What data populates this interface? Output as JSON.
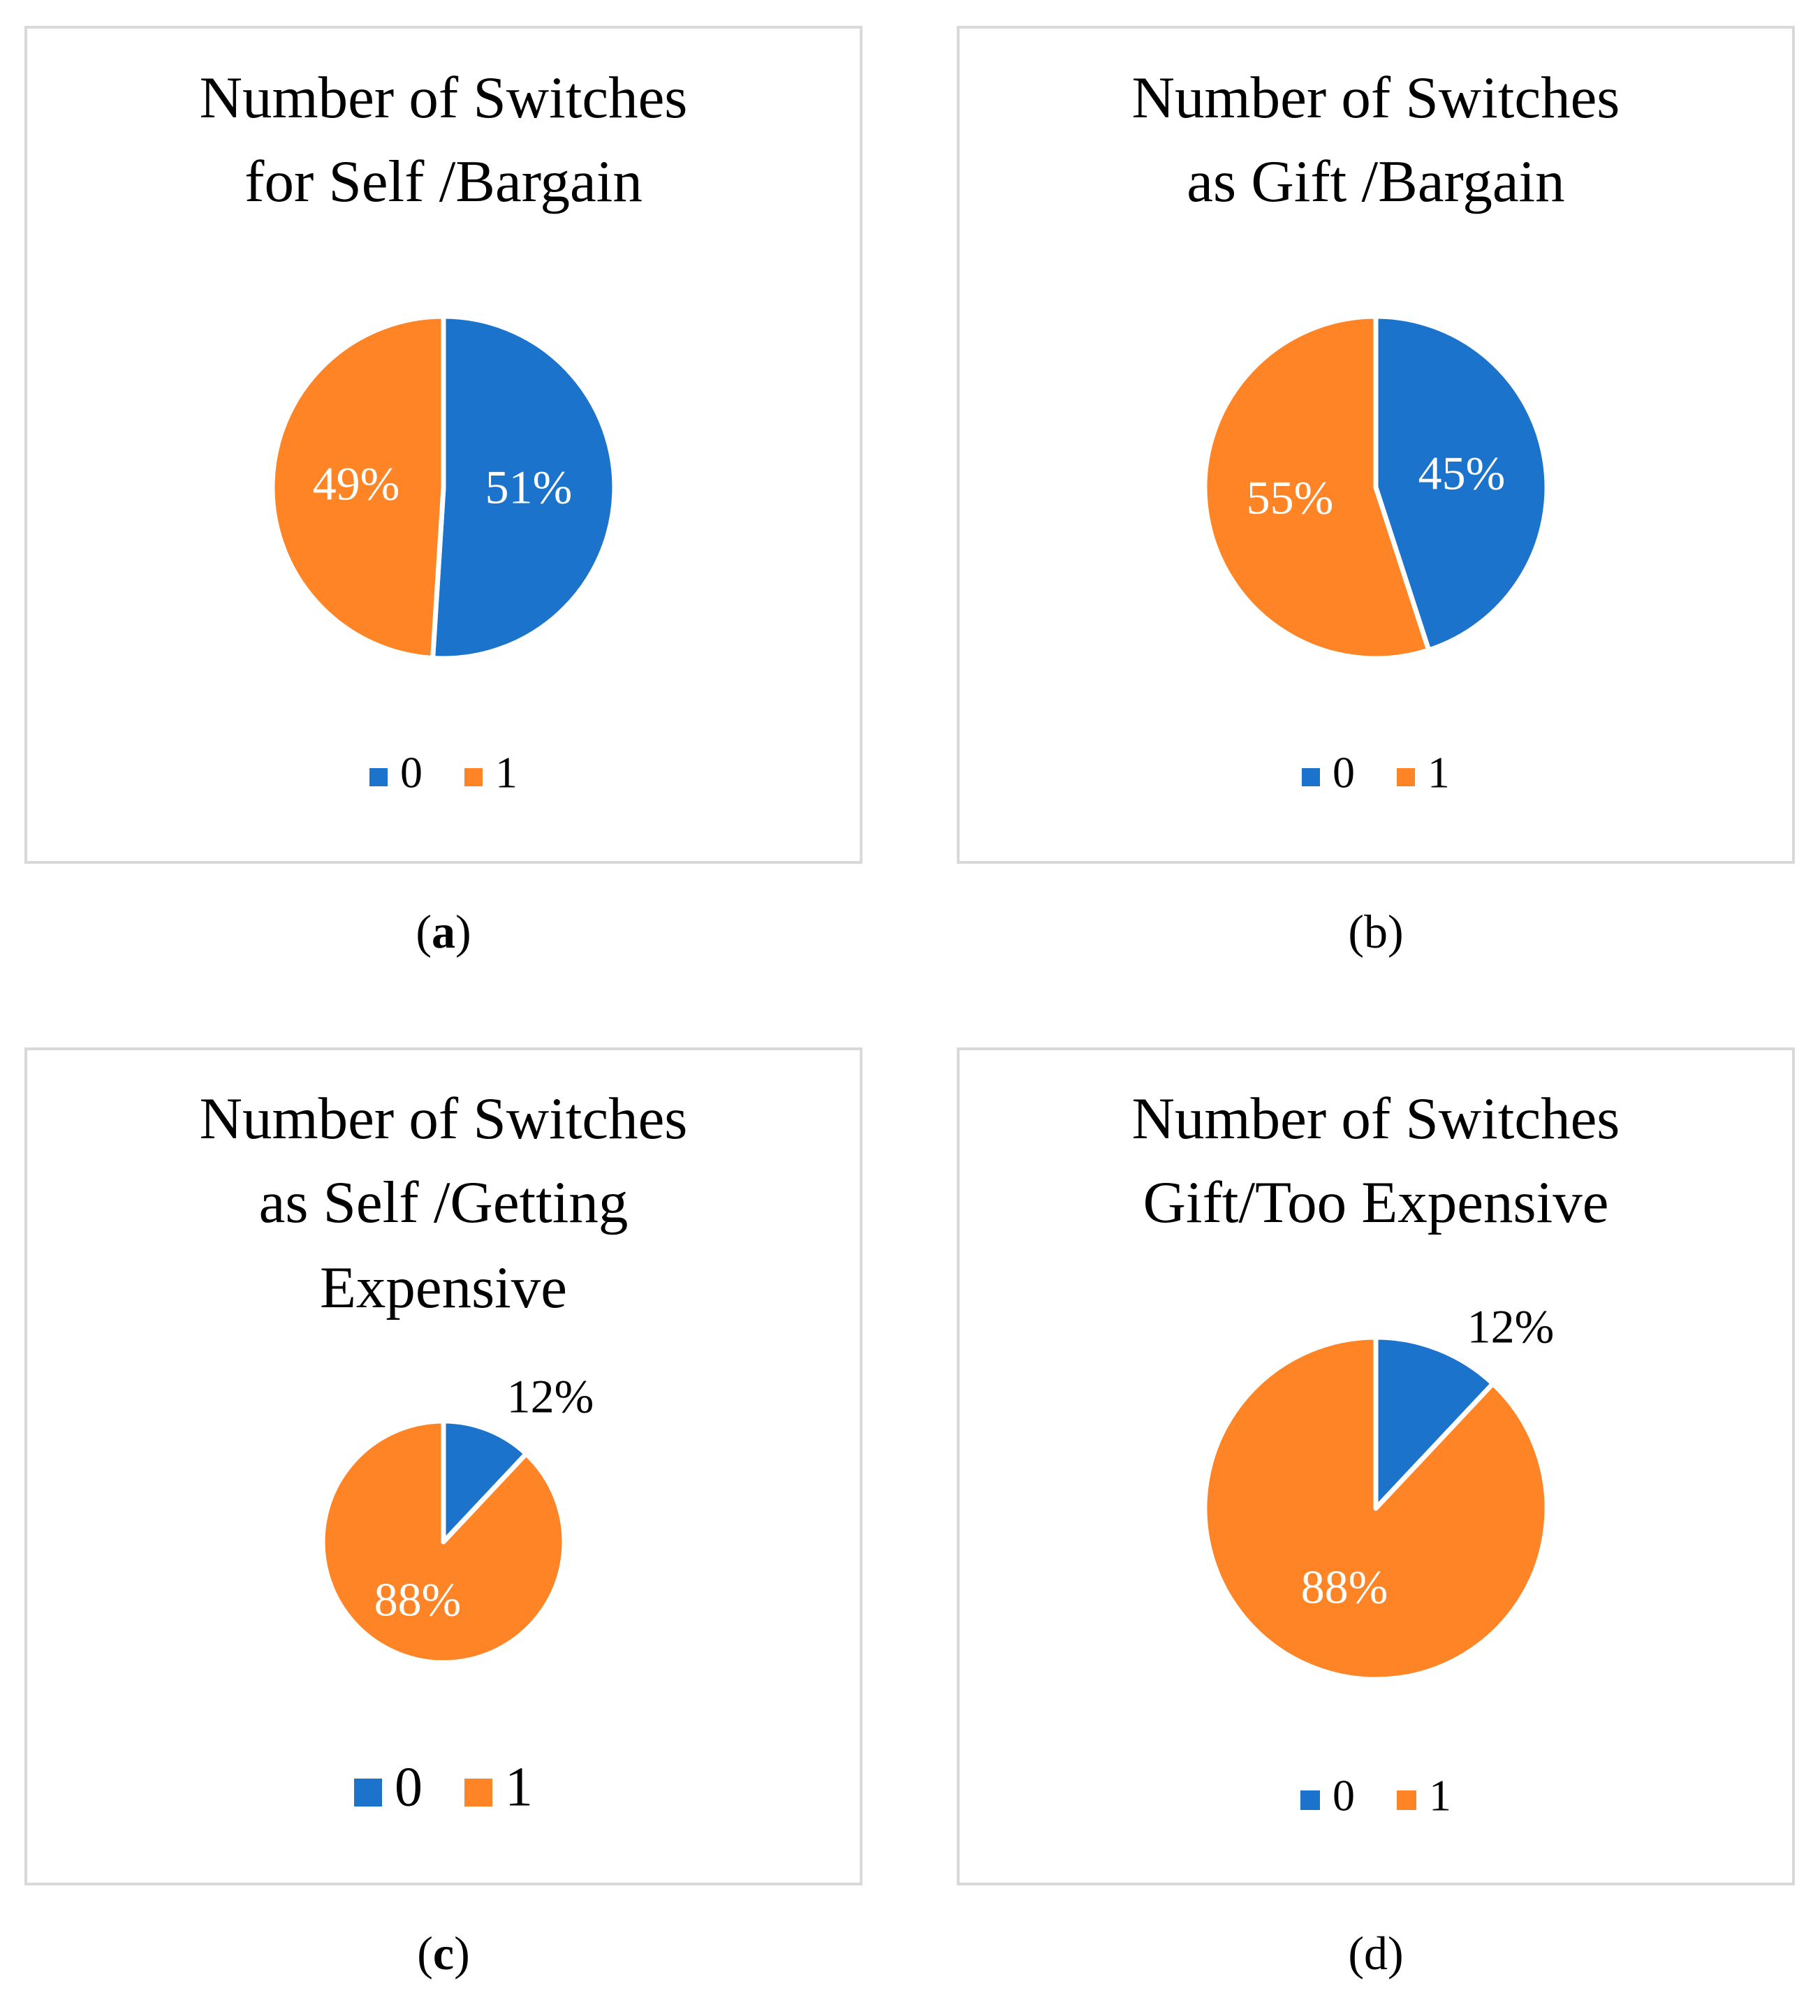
{
  "colors": {
    "series0": "#1B73CC",
    "series1": "#FE8426",
    "frame": "#D9D9D9",
    "text": "#000000",
    "label_on_slice": "#FFFFFF"
  },
  "chart_data": [
    {
      "type": "pie",
      "title": [
        "Number of Switches",
        "for Self /Bargain"
      ],
      "caption": "(a)",
      "legend_position": "bottom",
      "slices": [
        {
          "name": "0",
          "value": 51,
          "label": "51%"
        },
        {
          "name": "1",
          "value": 49,
          "label": "49%"
        }
      ]
    },
    {
      "type": "pie",
      "title": [
        "Number of Switches",
        "as Gift /Bargain"
      ],
      "caption": "(b)",
      "legend_position": "bottom",
      "slices": [
        {
          "name": "0",
          "value": 45,
          "label": "45%"
        },
        {
          "name": "1",
          "value": 55,
          "label": "55%"
        }
      ]
    },
    {
      "type": "pie",
      "title": [
        "Number of Switches",
        "as Self /Getting",
        "Expensive"
      ],
      "caption": "(c)",
      "legend_position": "bottom",
      "slices": [
        {
          "name": "0",
          "value": 12,
          "label": "12%"
        },
        {
          "name": "1",
          "value": 88,
          "label": "88%"
        }
      ]
    },
    {
      "type": "pie",
      "title": [
        "Number of Switches",
        "Gift/Too Expensive"
      ],
      "caption": "(d)",
      "legend_position": "bottom",
      "slices": [
        {
          "name": "0",
          "value": 12,
          "label": "12%"
        },
        {
          "name": "1",
          "value": 88,
          "label": "88%"
        }
      ]
    }
  ]
}
